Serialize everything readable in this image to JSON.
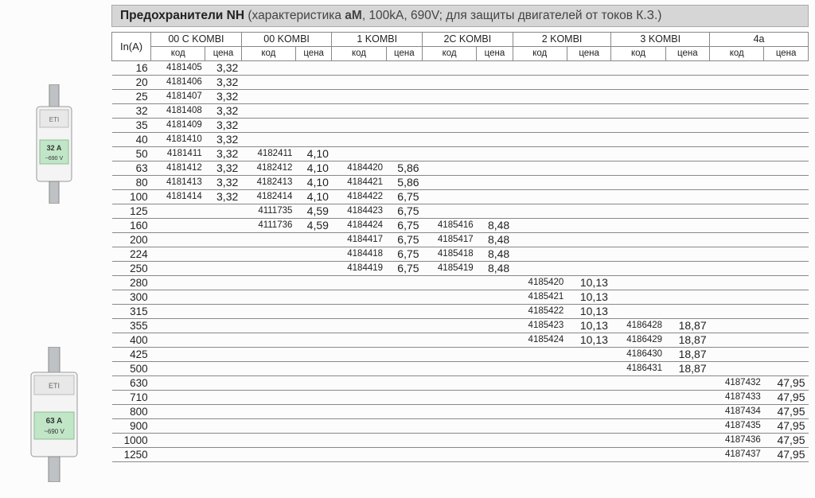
{
  "title_main": "Предохранители NH",
  "title_paren_prefix": "(характеристика ",
  "title_am": "aM",
  "title_paren_rest": ", 100kA, 690V; для защиты двигателей от токов К.З.)",
  "header_in": "In(A)",
  "header_sub_code": "код",
  "header_sub_price": "цена",
  "groups": [
    "00 C KOMBI",
    "00 KOMBI",
    "1 KOMBI",
    "2C KOMBI",
    "2 KOMBI",
    "3 KOMBI",
    "4a"
  ],
  "rows": [
    {
      "in": "16",
      "cells": [
        [
          "4181405",
          "3,32"
        ],
        null,
        null,
        null,
        null,
        null,
        null
      ]
    },
    {
      "in": "20",
      "cells": [
        [
          "4181406",
          "3,32"
        ],
        null,
        null,
        null,
        null,
        null,
        null
      ]
    },
    {
      "in": "25",
      "cells": [
        [
          "4181407",
          "3,32"
        ],
        null,
        null,
        null,
        null,
        null,
        null
      ]
    },
    {
      "in": "32",
      "cells": [
        [
          "4181408",
          "3,32"
        ],
        null,
        null,
        null,
        null,
        null,
        null
      ]
    },
    {
      "in": "35",
      "cells": [
        [
          "4181409",
          "3,32"
        ],
        null,
        null,
        null,
        null,
        null,
        null
      ]
    },
    {
      "in": "40",
      "cells": [
        [
          "4181410",
          "3,32"
        ],
        null,
        null,
        null,
        null,
        null,
        null
      ]
    },
    {
      "in": "50",
      "cells": [
        [
          "4181411",
          "3,32"
        ],
        [
          "4182411",
          "4,10"
        ],
        null,
        null,
        null,
        null,
        null
      ]
    },
    {
      "in": "63",
      "cells": [
        [
          "4181412",
          "3,32"
        ],
        [
          "4182412",
          "4,10"
        ],
        [
          "4184420",
          "5,86"
        ],
        null,
        null,
        null,
        null
      ]
    },
    {
      "in": "80",
      "cells": [
        [
          "4181413",
          "3,32"
        ],
        [
          "4182413",
          "4,10"
        ],
        [
          "4184421",
          "5,86"
        ],
        null,
        null,
        null,
        null
      ]
    },
    {
      "in": "100",
      "cells": [
        [
          "4181414",
          "3,32"
        ],
        [
          "4182414",
          "4,10"
        ],
        [
          "4184422",
          "6,75"
        ],
        null,
        null,
        null,
        null
      ]
    },
    {
      "in": "125",
      "cells": [
        null,
        [
          "4111735",
          "4,59"
        ],
        [
          "4184423",
          "6,75"
        ],
        null,
        null,
        null,
        null
      ]
    },
    {
      "in": "160",
      "cells": [
        null,
        [
          "4111736",
          "4,59"
        ],
        [
          "4184424",
          "6,75"
        ],
        [
          "4185416",
          "8,48"
        ],
        null,
        null,
        null
      ]
    },
    {
      "in": "200",
      "cells": [
        null,
        null,
        [
          "4184417",
          "6,75"
        ],
        [
          "4185417",
          "8,48"
        ],
        null,
        null,
        null
      ]
    },
    {
      "in": "224",
      "cells": [
        null,
        null,
        [
          "4184418",
          "6,75"
        ],
        [
          "4185418",
          "8,48"
        ],
        null,
        null,
        null
      ]
    },
    {
      "in": "250",
      "cells": [
        null,
        null,
        [
          "4184419",
          "6,75"
        ],
        [
          "4185419",
          "8,48"
        ],
        null,
        null,
        null
      ]
    },
    {
      "in": "280",
      "cells": [
        null,
        null,
        null,
        null,
        [
          "4185420",
          "10,13"
        ],
        null,
        null
      ]
    },
    {
      "in": "300",
      "cells": [
        null,
        null,
        null,
        null,
        [
          "4185421",
          "10,13"
        ],
        null,
        null
      ]
    },
    {
      "in": "315",
      "cells": [
        null,
        null,
        null,
        null,
        [
          "4185422",
          "10,13"
        ],
        null,
        null
      ]
    },
    {
      "in": "355",
      "cells": [
        null,
        null,
        null,
        null,
        [
          "4185423",
          "10,13"
        ],
        [
          "4186428",
          "18,87"
        ],
        null
      ]
    },
    {
      "in": "400",
      "cells": [
        null,
        null,
        null,
        null,
        [
          "4185424",
          "10,13"
        ],
        [
          "4186429",
          "18,87"
        ],
        null
      ]
    },
    {
      "in": "425",
      "cells": [
        null,
        null,
        null,
        null,
        null,
        [
          "4186430",
          "18,87"
        ],
        null
      ]
    },
    {
      "in": "500",
      "cells": [
        null,
        null,
        null,
        null,
        null,
        [
          "4186431",
          "18,87"
        ],
        null
      ]
    },
    {
      "in": "630",
      "cells": [
        null,
        null,
        null,
        null,
        null,
        null,
        [
          "4187432",
          "47,95"
        ]
      ]
    },
    {
      "in": "710",
      "cells": [
        null,
        null,
        null,
        null,
        null,
        null,
        [
          "4187433",
          "47,95"
        ]
      ]
    },
    {
      "in": "800",
      "cells": [
        null,
        null,
        null,
        null,
        null,
        null,
        [
          "4187434",
          "47,95"
        ]
      ]
    },
    {
      "in": "900",
      "cells": [
        null,
        null,
        null,
        null,
        null,
        null,
        [
          "4187435",
          "47,95"
        ]
      ]
    },
    {
      "in": "1000",
      "cells": [
        null,
        null,
        null,
        null,
        null,
        null,
        [
          "4187436",
          "47,95"
        ]
      ]
    },
    {
      "in": "1250",
      "cells": [
        null,
        null,
        null,
        null,
        null,
        null,
        [
          "4187437",
          "47,95"
        ]
      ]
    }
  ],
  "colors": {
    "title_bg": "#d6d6d6",
    "border": "#888888",
    "text": "#222222"
  },
  "fuse_label_1": "32 A",
  "fuse_label_2": "63 A",
  "fuse_voltage": "~690 V",
  "fuse_brand": "ETI"
}
